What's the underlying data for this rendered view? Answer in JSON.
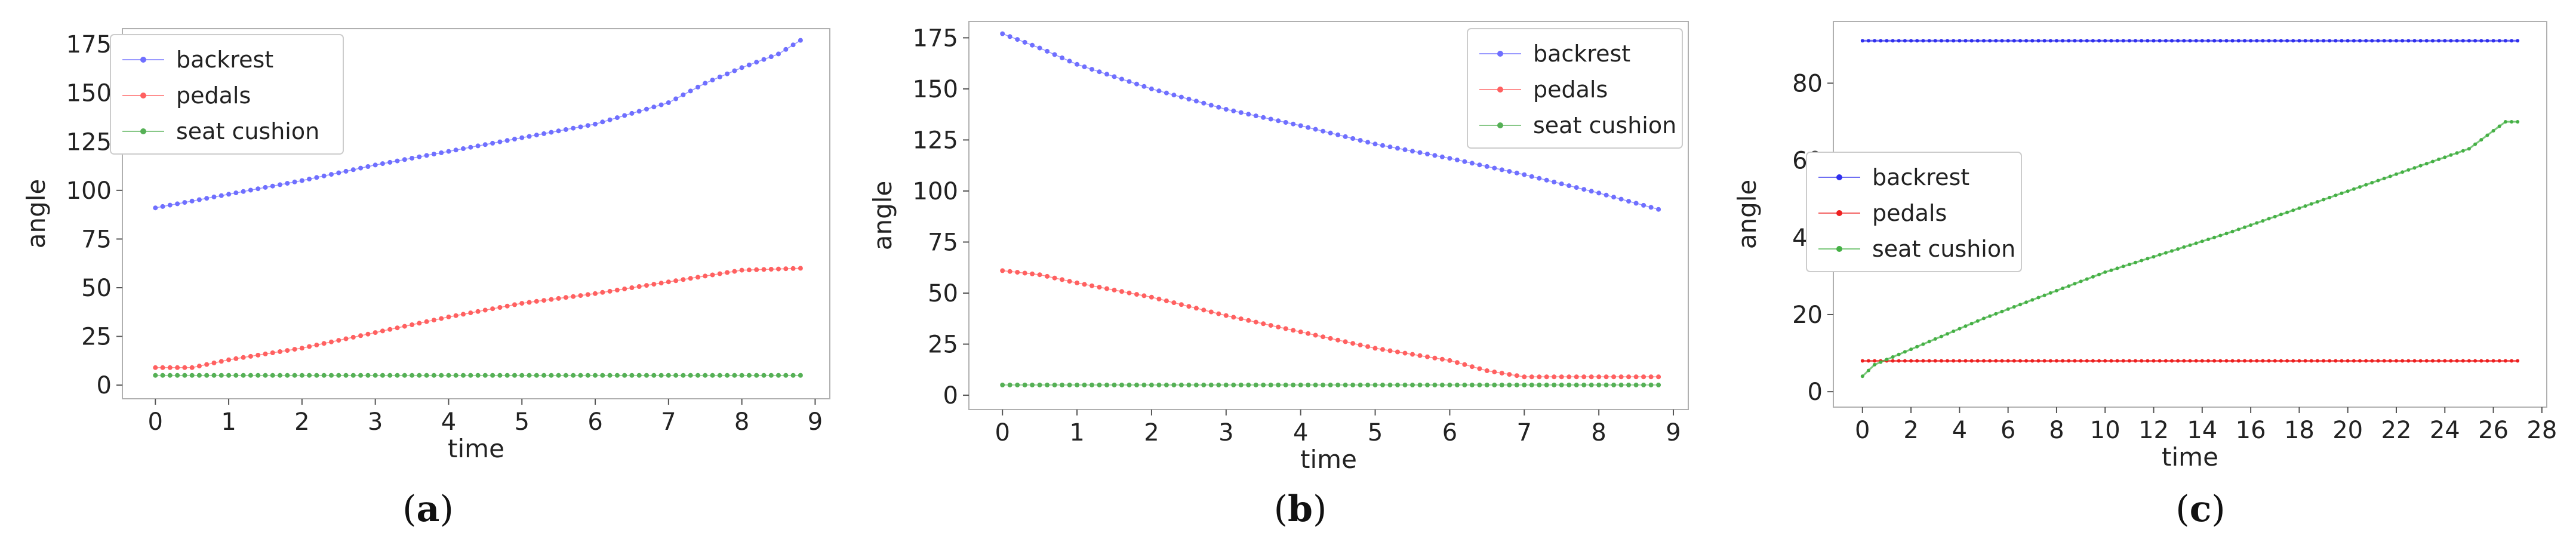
{
  "chart_data": [
    {
      "type": "line",
      "panel_label": "a",
      "xlabel": "time",
      "ylabel": "angle",
      "xlim": [
        -0.45,
        9.2
      ],
      "ylim": [
        -7,
        183
      ],
      "xticks": [
        0,
        1,
        2,
        3,
        4,
        5,
        6,
        7,
        8,
        9
      ],
      "yticks": [
        0,
        25,
        50,
        75,
        100,
        125,
        150,
        175
      ],
      "legend_position": "top-left",
      "x_range": [
        0,
        8.8
      ],
      "x_step": 0.1,
      "series": [
        {
          "name": "backrest",
          "color": "#6f6fff",
          "keypoints_x": [
            0,
            1,
            2,
            3,
            4,
            5,
            6,
            7,
            7.5,
            8,
            8.5,
            8.8
          ],
          "keypoints_y": [
            91,
            98,
            105,
            113,
            120,
            127,
            134,
            145,
            155,
            163,
            170,
            177
          ]
        },
        {
          "name": "pedals",
          "color": "#ff6060",
          "keypoints_x": [
            0,
            0.5,
            1,
            2,
            3,
            4,
            5,
            6,
            7,
            8,
            8.8
          ],
          "keypoints_y": [
            9,
            9,
            13,
            19,
            27,
            35,
            42,
            47,
            53,
            59,
            60
          ]
        },
        {
          "name": "seat cushion",
          "color": "#55b055",
          "keypoints_x": [
            0,
            8.8
          ],
          "keypoints_y": [
            5,
            5
          ]
        }
      ]
    },
    {
      "type": "line",
      "panel_label": "b",
      "xlabel": "time",
      "ylabel": "angle",
      "xlim": [
        -0.45,
        9.2
      ],
      "ylim": [
        -7,
        183
      ],
      "xticks": [
        0,
        1,
        2,
        3,
        4,
        5,
        6,
        7,
        8,
        9
      ],
      "yticks": [
        0,
        25,
        50,
        75,
        100,
        125,
        150,
        175
      ],
      "legend_position": "top-right",
      "x_range": [
        0,
        8.8
      ],
      "x_step": 0.1,
      "series": [
        {
          "name": "backrest",
          "color": "#6f6fff",
          "keypoints_x": [
            0,
            0.5,
            1,
            2,
            3,
            4,
            5,
            6,
            7,
            8,
            8.8
          ],
          "keypoints_y": [
            177,
            170,
            162,
            150,
            140,
            132,
            123,
            116,
            108,
            99,
            91
          ]
        },
        {
          "name": "pedals",
          "color": "#ff6060",
          "keypoints_x": [
            0,
            0.5,
            1,
            2,
            3,
            4,
            5,
            6,
            6.5,
            7,
            8,
            8.8
          ],
          "keypoints_y": [
            61,
            59,
            55,
            48,
            39,
            31,
            23,
            17,
            12,
            9,
            9,
            9
          ]
        },
        {
          "name": "seat cushion",
          "color": "#55b055",
          "keypoints_x": [
            0,
            8.8
          ],
          "keypoints_y": [
            5,
            5
          ]
        }
      ]
    },
    {
      "type": "line",
      "panel_label": "c",
      "xlabel": "time",
      "ylabel": "angle",
      "xlim": [
        -1.2,
        28.2
      ],
      "ylim": [
        -4,
        96
      ],
      "xticks": [
        0,
        2,
        4,
        6,
        8,
        10,
        12,
        14,
        16,
        18,
        20,
        22,
        24,
        26,
        28
      ],
      "yticks": [
        0,
        20,
        40,
        60,
        80
      ],
      "legend_position": "center-left",
      "x_range": [
        0,
        27
      ],
      "x_step": 0.25,
      "series": [
        {
          "name": "backrest",
          "color": "#3030ee",
          "keypoints_x": [
            0,
            27
          ],
          "keypoints_y": [
            91,
            91
          ]
        },
        {
          "name": "pedals",
          "color": "#ee2020",
          "keypoints_x": [
            0,
            27
          ],
          "keypoints_y": [
            8,
            8
          ]
        },
        {
          "name": "seat cushion",
          "color": "#45b045",
          "keypoints_x": [
            0,
            0.5,
            2,
            5,
            10,
            15,
            20,
            25,
            26.5,
            27
          ],
          "keypoints_y": [
            4,
            7,
            11,
            19,
            31,
            41,
            52,
            63,
            70,
            70
          ]
        }
      ]
    }
  ]
}
